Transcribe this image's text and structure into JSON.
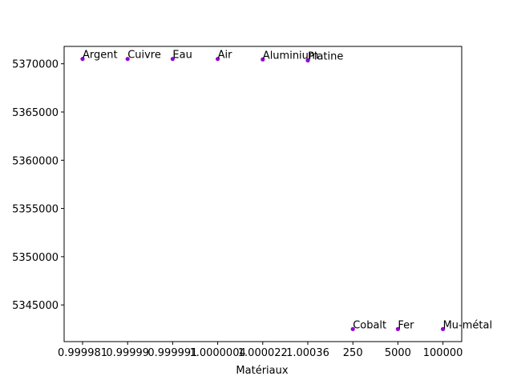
{
  "chart_data": {
    "type": "scatter",
    "title": "",
    "xlabel": "Matériaux",
    "ylabel": "",
    "categories": [
      "0.999981",
      "0.99999",
      "0.999991",
      "1.0000004",
      "1.000022",
      "1.00036",
      "250",
      "5000",
      "100000"
    ],
    "point_labels": [
      "Argent",
      "Cuivre",
      "Eau",
      "Air",
      "Aluminium",
      "Platine",
      "Cobalt",
      "Fer",
      "Mu-métal"
    ],
    "values": [
      5370500,
      5370500,
      5370500,
      5370500,
      5370450,
      5370350,
      5342500,
      5342500,
      5342500
    ],
    "yticks": [
      5345000,
      5350000,
      5355000,
      5360000,
      5365000,
      5370000
    ],
    "ylim": [
      5341200,
      5371800
    ],
    "grid": false,
    "marker_color": "#9400d3"
  }
}
